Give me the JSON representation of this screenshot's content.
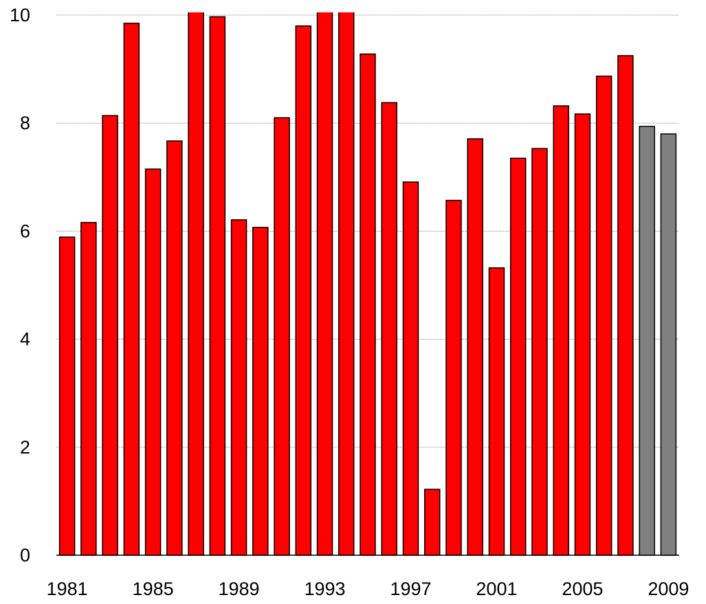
{
  "chart_data": {
    "type": "bar",
    "categories": [
      "1981",
      null,
      null,
      null,
      "1985",
      null,
      null,
      null,
      "1989",
      null,
      null,
      null,
      "1993",
      null,
      null,
      null,
      "1997",
      null,
      null,
      null,
      "2001",
      null,
      null,
      null,
      "2005",
      null,
      null,
      null,
      "2009"
    ],
    "values": [
      5.89,
      6.16,
      8.14,
      9.85,
      7.15,
      7.67,
      10.5,
      9.97,
      6.21,
      6.07,
      8.1,
      9.8,
      10.4,
      10.3,
      9.28,
      8.38,
      6.91,
      1.22,
      6.57,
      7.71,
      5.32,
      7.35,
      7.53,
      8.32,
      8.17,
      8.87,
      9.25,
      7.94,
      7.8
    ],
    "colors": [
      "#ff0000",
      "#ff0000",
      "#ff0000",
      "#ff0000",
      "#ff0000",
      "#ff0000",
      "#ff0000",
      "#ff0000",
      "#ff0000",
      "#ff0000",
      "#ff0000",
      "#ff0000",
      "#ff0000",
      "#ff0000",
      "#ff0000",
      "#ff0000",
      "#ff0000",
      "#ff0000",
      "#ff0000",
      "#ff0000",
      "#ff0000",
      "#ff0000",
      "#ff0000",
      "#ff0000",
      "#ff0000",
      "#ff0000",
      "#ff0000",
      "#808080",
      "#808080"
    ],
    "ylim": [
      0,
      10
    ],
    "yticks": [
      0,
      2,
      4,
      6,
      8,
      10
    ],
    "grid": true
  }
}
